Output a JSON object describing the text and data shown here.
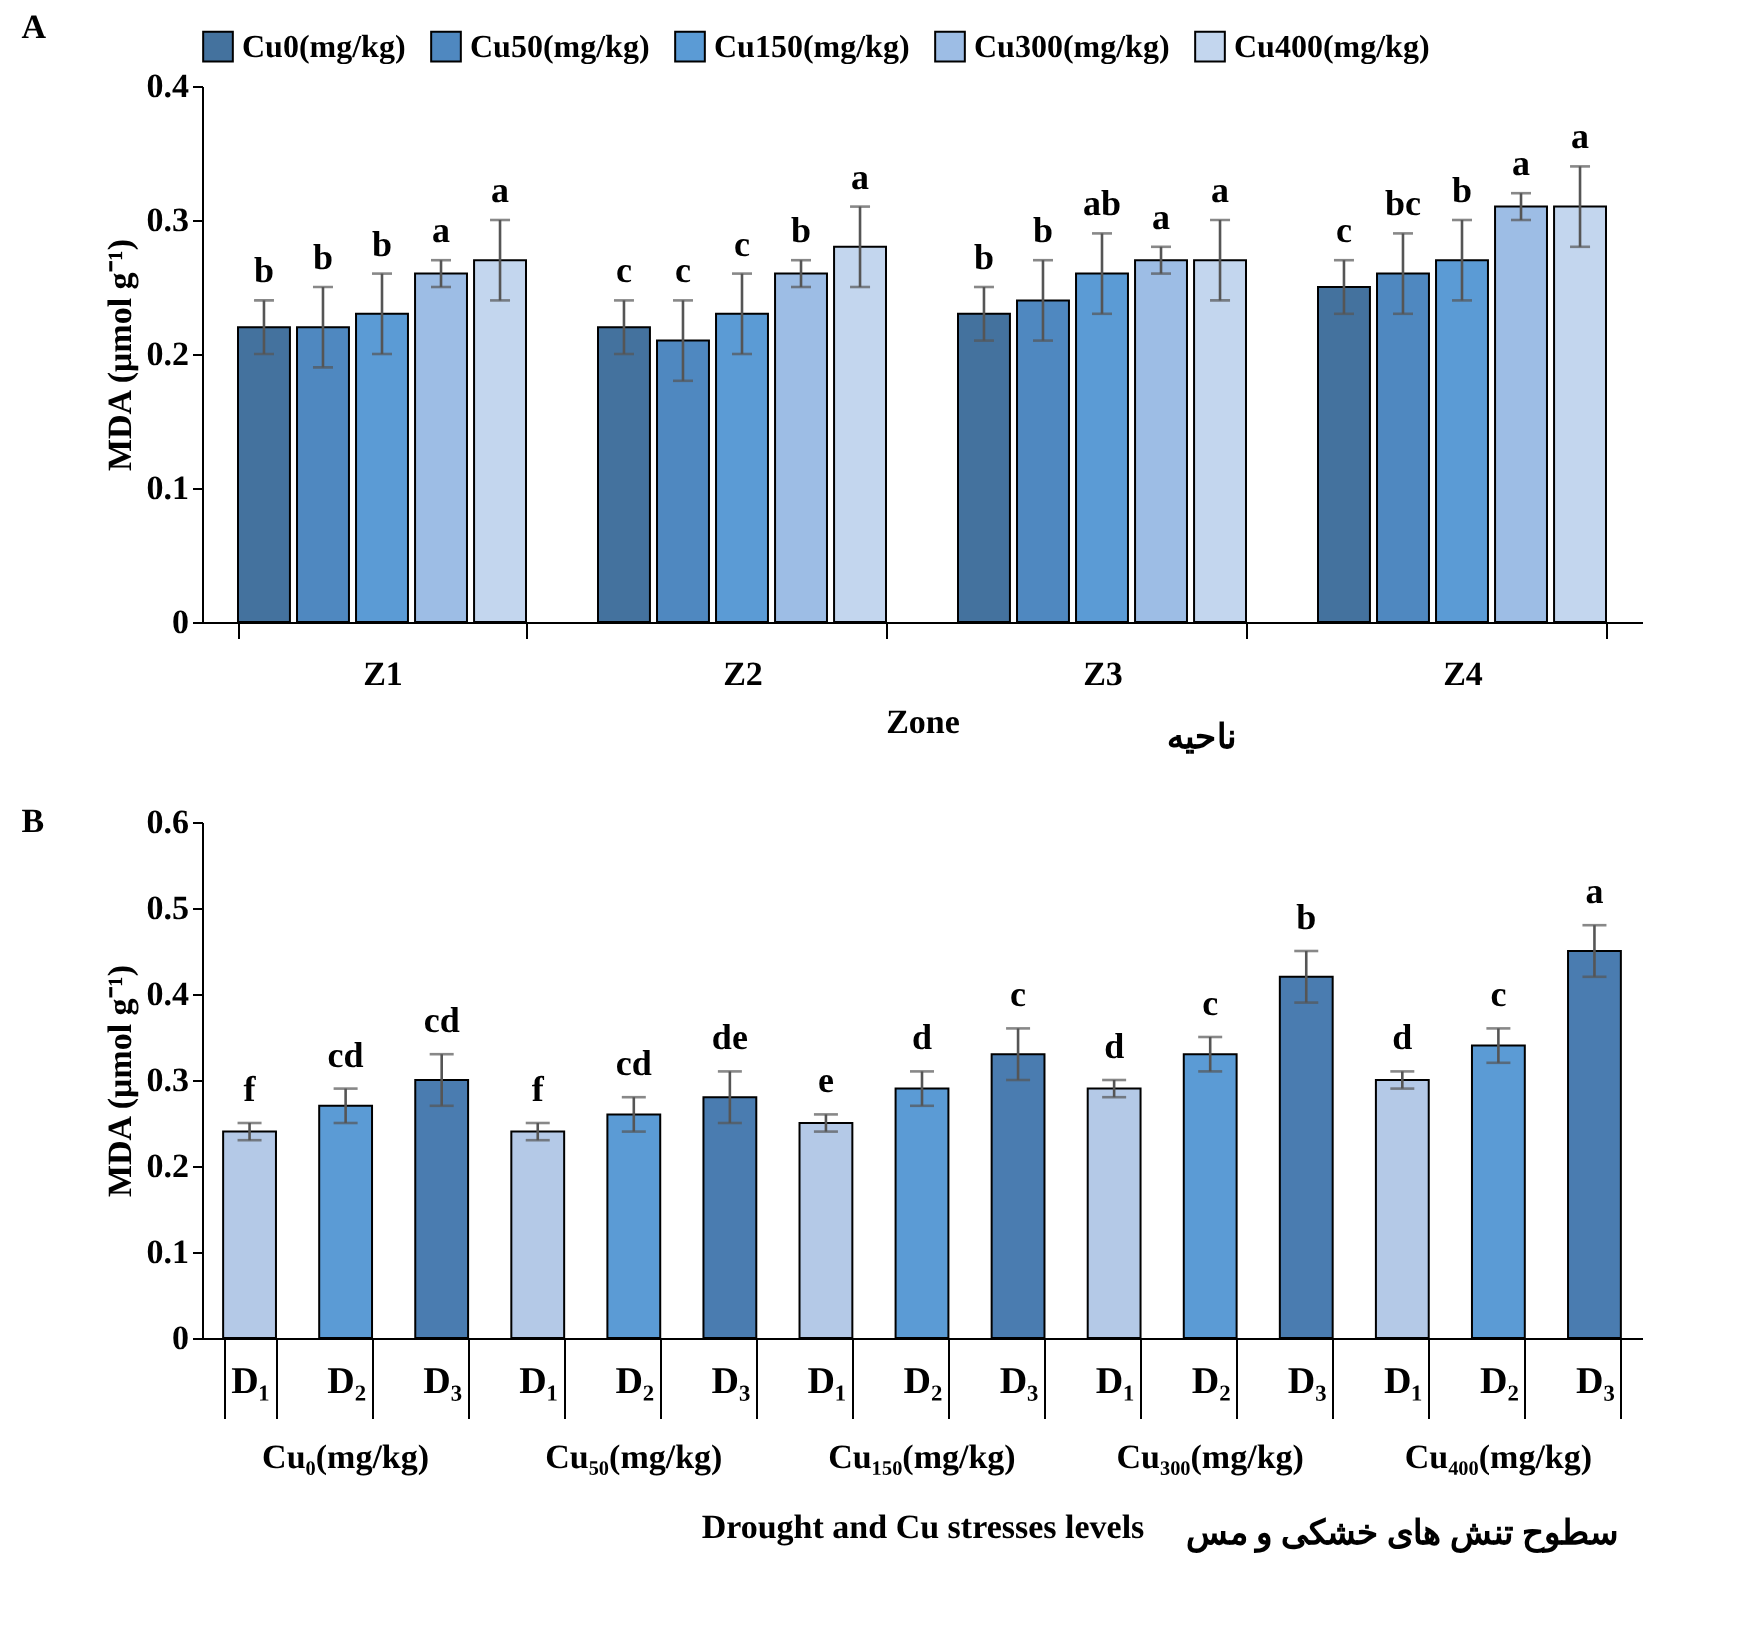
{
  "chart_data": [
    {
      "type": "bar",
      "title": "A",
      "xlabel": "Zone",
      "ylabel": "MDA (μmol g⁻¹)",
      "annotations": [
        "ناحیه"
      ],
      "categories": [
        "Z1",
        "Z2",
        "Z3",
        "Z4"
      ],
      "ylim": [
        0,
        0.4
      ],
      "yticks": [
        0,
        0.1,
        0.2,
        0.3,
        0.4
      ],
      "legend": "top",
      "series": [
        {
          "name": "Cu0(mg/kg)",
          "color": "#44729e",
          "values": [
            0.22,
            0.22,
            0.23,
            0.25
          ],
          "errors": [
            0.02,
            0.02,
            0.02,
            0.02
          ],
          "value_labels": [
            "b",
            "c",
            "b",
            "c"
          ]
        },
        {
          "name": "Cu50(mg/kg)",
          "color": "#4f88c0",
          "values": [
            0.22,
            0.21,
            0.24,
            0.26
          ],
          "errors": [
            0.03,
            0.03,
            0.03,
            0.03
          ],
          "value_labels": [
            "b",
            "c",
            "b",
            "bc"
          ]
        },
        {
          "name": "Cu150(mg/kg)",
          "color": "#5b9bd5",
          "values": [
            0.23,
            0.23,
            0.26,
            0.27
          ],
          "errors": [
            0.03,
            0.03,
            0.03,
            0.03
          ],
          "value_labels": [
            "b",
            "c",
            "ab",
            "b"
          ]
        },
        {
          "name": "Cu300(mg/kg)",
          "color": "#9dbde5",
          "values": [
            0.26,
            0.26,
            0.27,
            0.31
          ],
          "errors": [
            0.01,
            0.01,
            0.01,
            0.01
          ],
          "value_labels": [
            "a",
            "b",
            "a",
            "a"
          ]
        },
        {
          "name": "Cu400(mg/kg)",
          "color": "#c3d6ee",
          "values": [
            0.27,
            0.28,
            0.27,
            0.31
          ],
          "errors": [
            0.03,
            0.03,
            0.03,
            0.03
          ],
          "value_labels": [
            "a",
            "a",
            "a",
            "a"
          ]
        }
      ]
    },
    {
      "type": "bar",
      "title": "B",
      "xlabel": "Drought and Cu stresses levels",
      "ylabel": "MDA (μmol g⁻¹)",
      "annotations": [
        "Cu₀(mg/kg)",
        "Cu₅₀(mg/kg)",
        "Cu₁₅₀(mg/kg)",
        "Cu₃₀₀(mg/kg)",
        "Cu₄₀₀(mg/kg)",
        "سطوح تنش های خشکی و مس"
      ],
      "categories": [
        "D₁",
        "D₂",
        "D₃",
        "D₁",
        "D₂",
        "D₃",
        "D₁",
        "D₂",
        "D₃",
        "D₁",
        "D₂",
        "D₃",
        "D₁",
        "D₂",
        "D₃"
      ],
      "ylim": [
        0,
        0.6
      ],
      "yticks": [
        0,
        0.1,
        0.2,
        0.3,
        0.4,
        0.5,
        0.6
      ],
      "values": [
        0.24,
        0.27,
        0.3,
        0.24,
        0.26,
        0.28,
        0.25,
        0.29,
        0.33,
        0.29,
        0.33,
        0.42,
        0.3,
        0.34,
        0.45
      ],
      "errors": [
        0.01,
        0.02,
        0.03,
        0.01,
        0.02,
        0.03,
        0.01,
        0.02,
        0.03,
        0.01,
        0.02,
        0.03,
        0.01,
        0.02,
        0.03
      ],
      "value_labels": [
        "f",
        "cd",
        "cd",
        "f",
        "cd",
        "de",
        "e",
        "d",
        "c",
        "d",
        "c",
        "b",
        "d",
        "c",
        "a"
      ],
      "colors": [
        "#b4c9e7",
        "#5b9bd5",
        "#4a7cb0",
        "#b4c9e7",
        "#5b9bd5",
        "#4a7cb0",
        "#b4c9e7",
        "#5b9bd5",
        "#4a7cb0",
        "#b4c9e7",
        "#5b9bd5",
        "#4a7cb0",
        "#b4c9e7",
        "#5b9bd5",
        "#4a7cb0"
      ]
    }
  ]
}
